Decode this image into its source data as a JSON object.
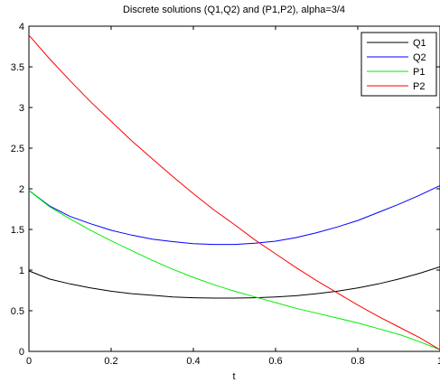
{
  "chart_data": {
    "type": "line",
    "title": "Discrete solutions (Q1,Q2) and (P1,P2), alpha=3/4",
    "xlabel": "t",
    "ylabel": "",
    "xlim": [
      0,
      1
    ],
    "ylim": [
      0,
      4
    ],
    "x_ticks": [
      "0",
      "0.2",
      "0.4",
      "0.6",
      "0.8",
      "1"
    ],
    "y_ticks": [
      "0",
      "0.5",
      "1",
      "1.5",
      "2",
      "2.5",
      "3",
      "3.5",
      "4"
    ],
    "grid": false,
    "legend_position": "top-right",
    "x": [
      0,
      0.05,
      0.1,
      0.15,
      0.2,
      0.25,
      0.3,
      0.35,
      0.4,
      0.45,
      0.5,
      0.55,
      0.6,
      0.65,
      0.7,
      0.75,
      0.8,
      0.85,
      0.9,
      0.95,
      1
    ],
    "series": [
      {
        "name": "Q1",
        "color": "#000000",
        "values": [
          0.99,
          0.89,
          0.83,
          0.78,
          0.74,
          0.71,
          0.69,
          0.67,
          0.66,
          0.655,
          0.655,
          0.66,
          0.67,
          0.685,
          0.71,
          0.74,
          0.78,
          0.83,
          0.89,
          0.96,
          1.04
        ]
      },
      {
        "name": "Q2",
        "color": "#0000ff",
        "values": [
          1.98,
          1.79,
          1.66,
          1.57,
          1.49,
          1.43,
          1.38,
          1.35,
          1.325,
          1.315,
          1.315,
          1.33,
          1.355,
          1.4,
          1.46,
          1.53,
          1.61,
          1.71,
          1.81,
          1.92,
          2.04
        ]
      },
      {
        "name": "P1",
        "color": "#00ee00",
        "values": [
          1.98,
          1.78,
          1.63,
          1.49,
          1.36,
          1.24,
          1.12,
          1.01,
          0.91,
          0.82,
          0.74,
          0.67,
          0.6,
          0.53,
          0.47,
          0.41,
          0.35,
          0.28,
          0.21,
          0.12,
          0.02
        ]
      },
      {
        "name": "P2",
        "color": "#ff0000",
        "values": [
          3.89,
          3.6,
          3.33,
          3.07,
          2.83,
          2.59,
          2.37,
          2.15,
          1.94,
          1.74,
          1.56,
          1.37,
          1.2,
          1.03,
          0.87,
          0.72,
          0.57,
          0.43,
          0.3,
          0.17,
          0.02
        ]
      }
    ]
  }
}
